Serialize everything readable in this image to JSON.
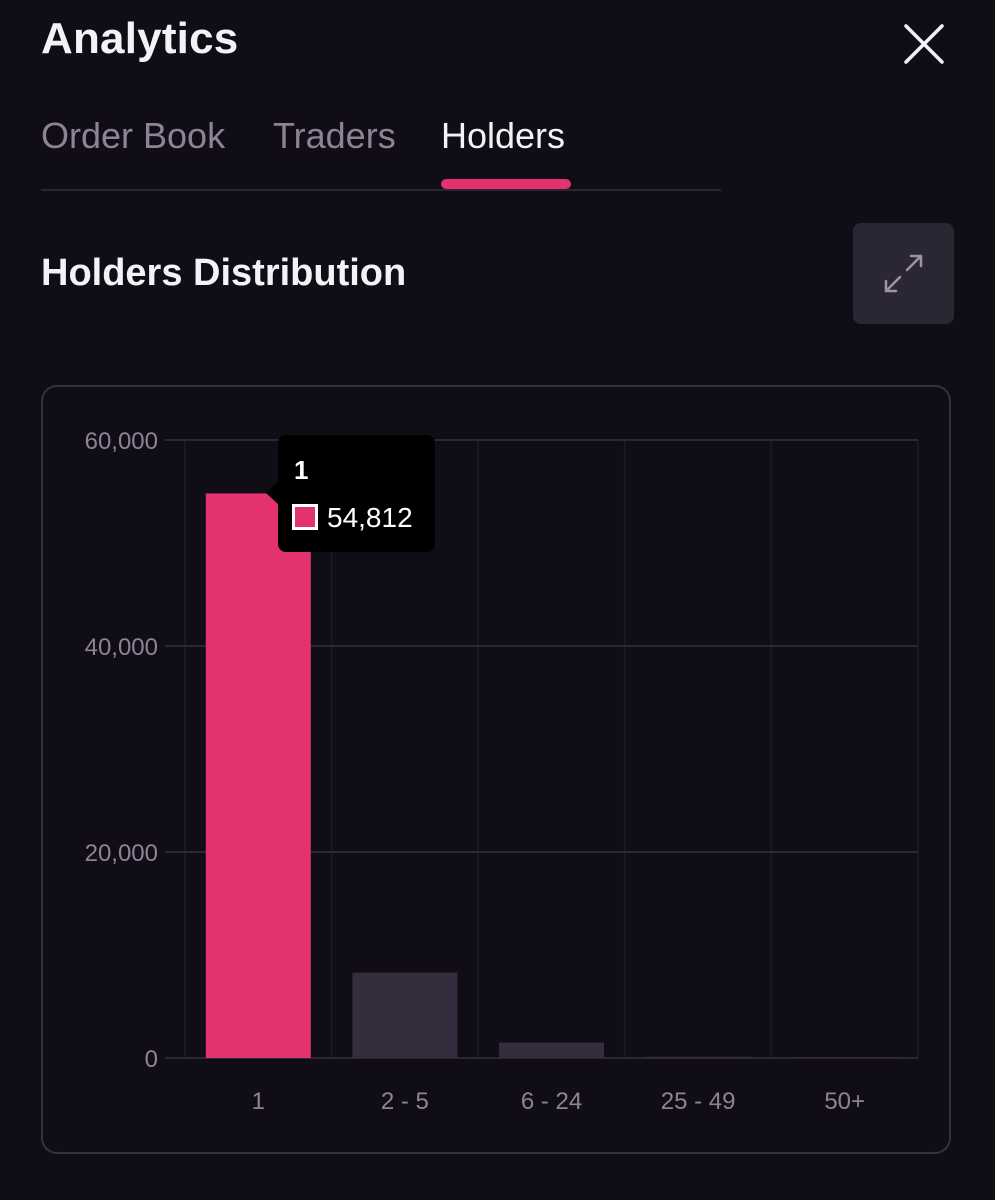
{
  "header": {
    "title": "Analytics",
    "close_icon": "close-icon"
  },
  "tabs": [
    {
      "label": "Order Book",
      "active": false
    },
    {
      "label": "Traders",
      "active": false
    },
    {
      "label": "Holders",
      "active": true
    }
  ],
  "section": {
    "title": "Holders Distribution",
    "expand_icon": "expand-arrows-icon"
  },
  "colors": {
    "accent": "#e2336f",
    "bar_muted": "#332d3e",
    "background": "#100d17"
  },
  "tooltip": {
    "title": "1",
    "value": "54,812"
  },
  "chart_data": {
    "type": "bar",
    "categories": [
      "1",
      "2 - 5",
      "6 - 24",
      "25 - 49",
      "50+"
    ],
    "values": [
      54812,
      8300,
      1500,
      120,
      60
    ],
    "ylim": [
      0,
      60000
    ],
    "yticks": [
      "0",
      "20,000",
      "40,000",
      "60,000"
    ],
    "ytick_values": [
      0,
      20000,
      40000,
      60000
    ],
    "highlighted_index": 0,
    "grid": true,
    "legend": false
  }
}
